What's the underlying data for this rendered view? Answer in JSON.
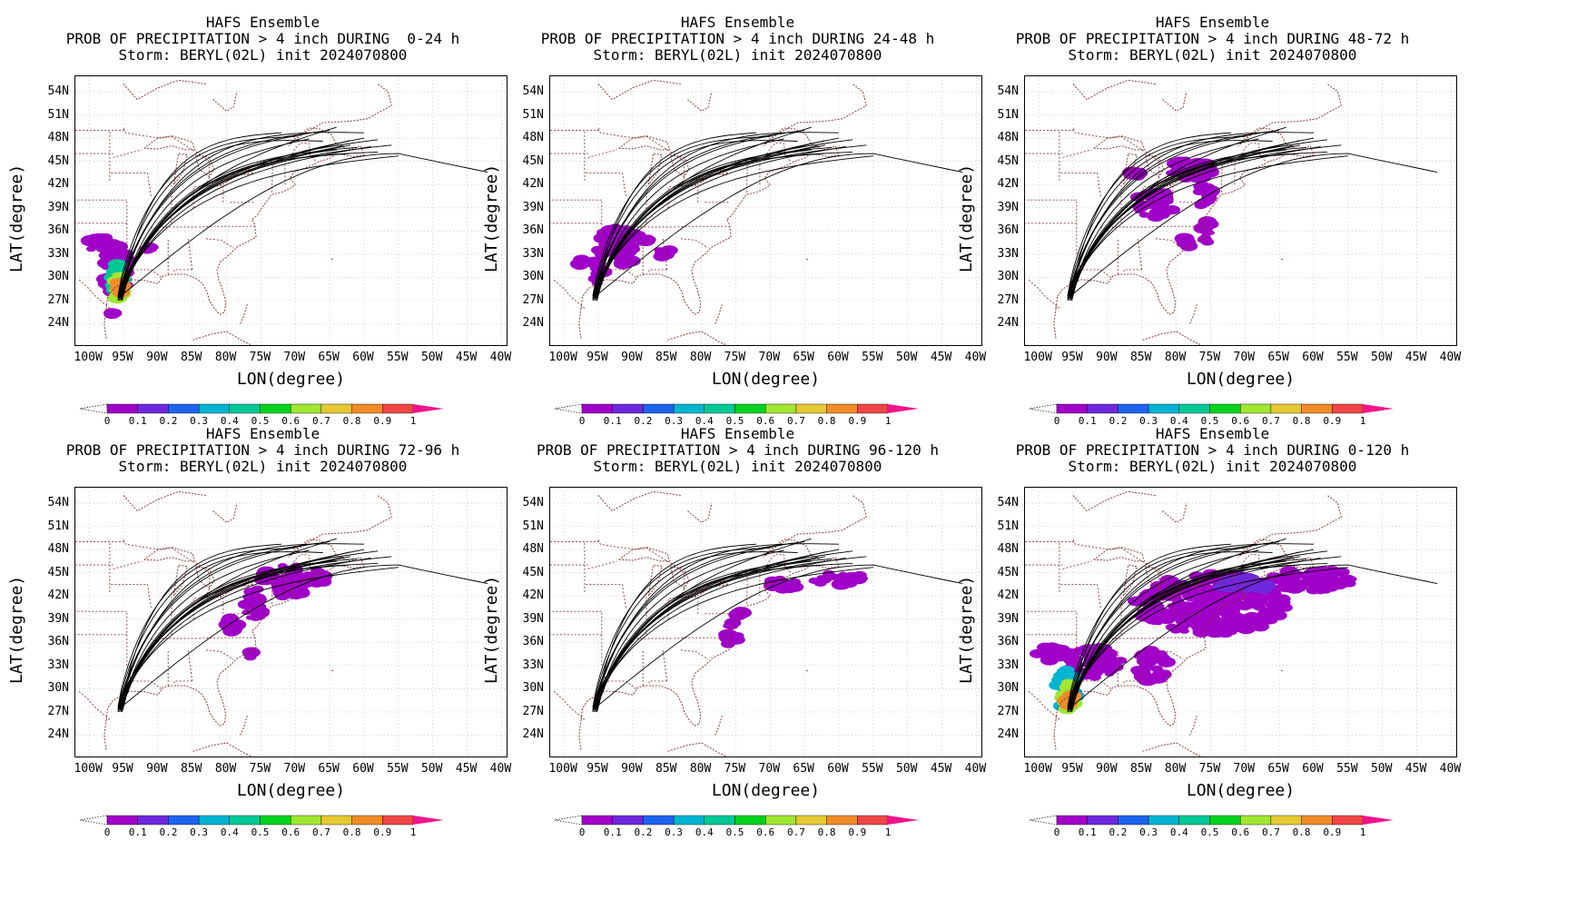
{
  "common": {
    "title": "HAFS Ensemble",
    "storm_line": "Storm: BERYL(02L) init 2024070800",
    "x_axis_title": "LON(degree)",
    "y_axis_title": "LAT(degree)",
    "lat_ticks": [
      "54N",
      "51N",
      "48N",
      "45N",
      "42N",
      "39N",
      "36N",
      "33N",
      "30N",
      "27N",
      "24N"
    ],
    "lon_ticks": [
      "100W",
      "95W",
      "90W",
      "85W",
      "80W",
      "75W",
      "70W",
      "65W",
      "60W",
      "55W",
      "50W",
      "45W",
      "40W"
    ],
    "colorbar_labels": [
      "0",
      "0.1",
      "0.2",
      "0.3",
      "0.4",
      "0.5",
      "0.6",
      "0.7",
      "0.8",
      "0.9",
      "1"
    ],
    "colorbar_colors": [
      "#a000c8",
      "#6e28dc",
      "#1e64f0",
      "#00b4d2",
      "#00c896",
      "#00d21e",
      "#a0e632",
      "#e6c832",
      "#f08c28",
      "#f04646",
      "#f0148c"
    ],
    "country_border_color": "#8b3a3a",
    "track_color": "#000000"
  },
  "panels": [
    {
      "subtitle": "PROB OF PRECIPITATION > 4 inch DURING  0-24 h"
    },
    {
      "subtitle": "PROB OF PRECIPITATION > 4 inch DURING 24-48 h"
    },
    {
      "subtitle": "PROB OF PRECIPITATION > 4 inch DURING 48-72 h"
    },
    {
      "subtitle": "PROB OF PRECIPITATION > 4 inch DURING 72-96 h"
    },
    {
      "subtitle": "PROB OF PRECIPITATION > 4 inch DURING 96-120 h"
    },
    {
      "subtitle": "PROB OF PRECIPITATION > 4 inch DURING 0-120 h"
    }
  ]
}
